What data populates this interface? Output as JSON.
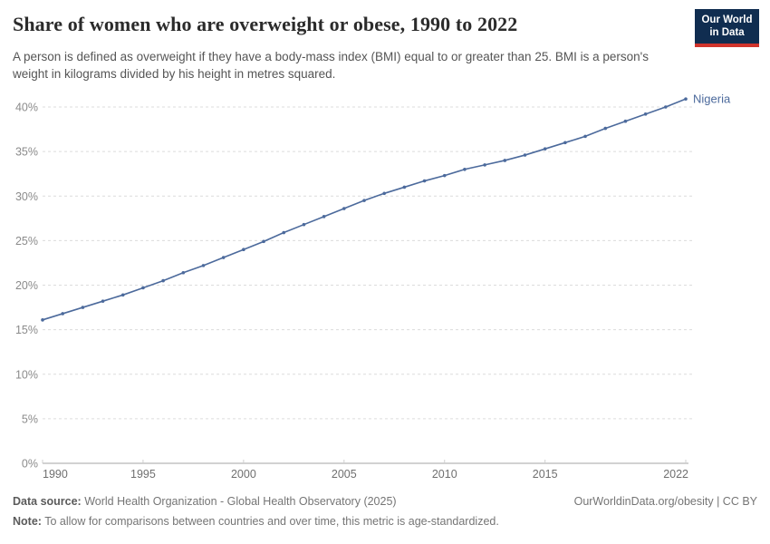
{
  "header": {
    "title": "Share of women who are overweight or obese, 1990 to 2022",
    "subtitle": "A person is defined as overweight if they have a body-mass index (BMI) equal to or greater than 25. BMI is a person's weight in kilograms divided by his height in metres squared.",
    "logo": {
      "line1": "Our World",
      "line2": "in Data",
      "bg_color": "#102d50",
      "accent_color": "#d0342c"
    }
  },
  "chart_data": {
    "type": "line",
    "title": "Share of women who are overweight or obese, 1990 to 2022",
    "xlabel": "",
    "ylabel": "",
    "x": [
      1990,
      1991,
      1992,
      1993,
      1994,
      1995,
      1996,
      1997,
      1998,
      1999,
      2000,
      2001,
      2002,
      2003,
      2004,
      2005,
      2006,
      2007,
      2008,
      2009,
      2010,
      2011,
      2012,
      2013,
      2014,
      2015,
      2016,
      2017,
      2018,
      2019,
      2020,
      2021,
      2022
    ],
    "series": [
      {
        "name": "Nigeria",
        "color": "#4c6a9c",
        "values": [
          16.1,
          16.8,
          17.5,
          18.2,
          18.9,
          19.7,
          20.5,
          21.4,
          22.2,
          23.1,
          24.0,
          24.9,
          25.9,
          26.8,
          27.7,
          28.6,
          29.5,
          30.3,
          31.0,
          31.7,
          32.3,
          33.0,
          33.5,
          34.0,
          34.6,
          35.3,
          36.0,
          36.7,
          37.6,
          38.4,
          39.2,
          40.0,
          40.9
        ]
      }
    ],
    "xticks": [
      1990,
      1995,
      2000,
      2005,
      2010,
      2015,
      2022
    ],
    "yticks": [
      0,
      5,
      10,
      15,
      20,
      25,
      30,
      35,
      40
    ],
    "ytick_suffix": "%",
    "ylim": [
      0,
      40
    ],
    "grid": "horizontal-dashed",
    "legend": "inline-end-label"
  },
  "footer": {
    "data_source_label": "Data source:",
    "data_source": " World Health Organization - Global Health Observatory (2025)",
    "note_label": "Note:",
    "note": " To allow for comparisons between countries and over time, this metric is age-standardized.",
    "link": "OurWorldinData.org/obesity | CC BY"
  }
}
